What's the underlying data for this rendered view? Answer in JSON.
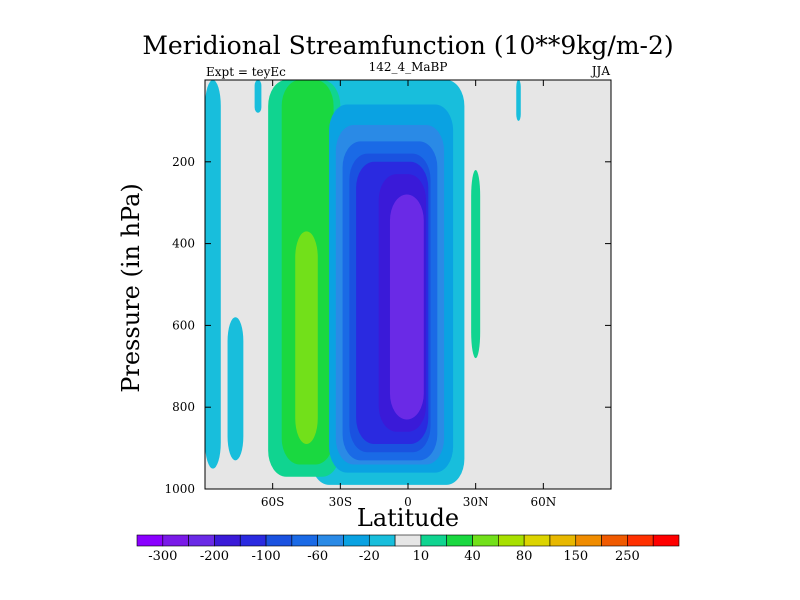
{
  "chart_data": {
    "type": "contour",
    "title": "Meridional Streamfunction (10**9kg/m-2)",
    "left_string": "Expt = teyEc",
    "center_string": "142_4_MaBP",
    "right_string": "JJA",
    "xlabel": "Latitude",
    "ylabel": "Pressure (in hPa)",
    "xlim": [
      -90,
      90
    ],
    "ylim": [
      1000,
      0
    ],
    "x_ticks": [
      -60,
      -30,
      0,
      30,
      60
    ],
    "x_tick_labels": [
      "60S",
      "30S",
      "0",
      "30N",
      "60N"
    ],
    "y_ticks": [
      200,
      400,
      600,
      800,
      1000
    ],
    "y_tick_labels": [
      "200",
      "400",
      "600",
      "800",
      "1000"
    ],
    "colorbar": {
      "levels": [
        -300,
        -250,
        -200,
        -150,
        -100,
        -80,
        -60,
        -40,
        -20,
        -10,
        10,
        20,
        40,
        60,
        80,
        100,
        150,
        200,
        250,
        300
      ],
      "labels": [
        "-300",
        "-200",
        "-100",
        "-60",
        "-20",
        "10",
        "40",
        "80",
        "150",
        "250"
      ],
      "label_levels": [
        -300,
        -200,
        -100,
        -60,
        -20,
        10,
        40,
        80,
        150,
        250
      ],
      "colors": [
        "#8a00ff",
        "#7a1ae8",
        "#6a2ae6",
        "#3a1ad8",
        "#2a2ae0",
        "#1a52e0",
        "#1a6ae6",
        "#2a8ae6",
        "#0aa2e2",
        "#18bedc",
        "#e6e6e6",
        "#10d490",
        "#1ad840",
        "#72e01a",
        "#a8e000",
        "#dcd400",
        "#e8b800",
        "#f08c00",
        "#f05a00",
        "#ff3000",
        "#ff0000"
      ]
    },
    "regions": [
      {
        "level": "-20 to -10",
        "lat": [
          -80,
          -73
        ],
        "p": [
          580,
          930
        ]
      },
      {
        "level": "-20 to -10",
        "lat": [
          -90,
          -83
        ],
        "p": [
          0,
          950
        ]
      },
      {
        "level": "-20 to -10",
        "lat": [
          -68,
          -65
        ],
        "p": [
          0,
          80
        ]
      },
      {
        "level": "-20 to -10",
        "lat": [
          -43,
          25
        ],
        "p": [
          0,
          990
        ]
      },
      {
        "level": "-20 to -10",
        "lat": [
          48,
          50
        ],
        "p": [
          0,
          100
        ]
      },
      {
        "level": "10 to 20",
        "lat": [
          -62,
          -30
        ],
        "p": [
          0,
          970
        ]
      },
      {
        "level": "10 to 20",
        "lat": [
          28,
          32
        ],
        "p": [
          220,
          680
        ]
      },
      {
        "level": "20 to 40",
        "lat": [
          -56,
          -33
        ],
        "p": [
          0,
          940
        ]
      },
      {
        "level": "40 to 60",
        "lat": [
          -50,
          -40
        ],
        "p": [
          370,
          890
        ]
      },
      {
        "level": "-40 to -20",
        "lat": [
          -35,
          20
        ],
        "p": [
          60,
          960
        ]
      },
      {
        "level": "-60 to -40",
        "lat": [
          -32,
          16
        ],
        "p": [
          110,
          940
        ]
      },
      {
        "level": "-80 to -60",
        "lat": [
          -29,
          13
        ],
        "p": [
          150,
          930
        ]
      },
      {
        "level": "-100 to -80",
        "lat": [
          -26,
          10
        ],
        "p": [
          180,
          910
        ]
      },
      {
        "level": "-150 to -100",
        "lat": [
          -23,
          9
        ],
        "p": [
          200,
          890
        ]
      },
      {
        "level": "-200 to -150",
        "lat": [
          -13,
          8
        ],
        "p": [
          230,
          860
        ]
      },
      {
        "level": "-250 to -200",
        "lat": [
          -8,
          7
        ],
        "p": [
          280,
          830
        ]
      }
    ]
  }
}
